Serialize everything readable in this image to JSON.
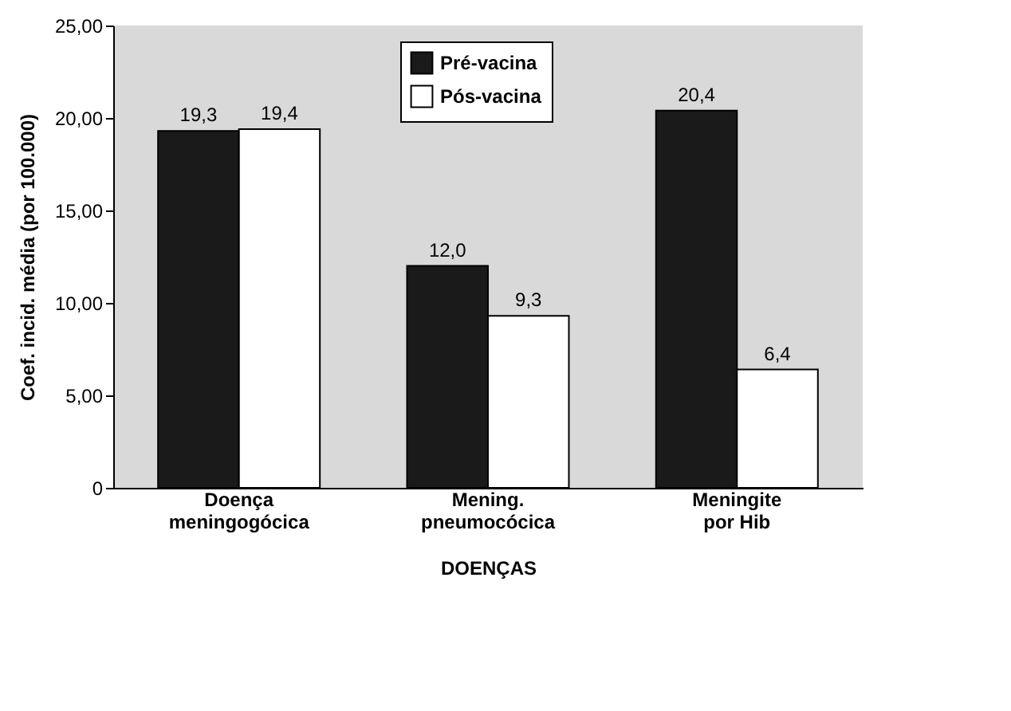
{
  "chart_data": {
    "type": "bar",
    "xlabel": "DOENÇAS",
    "ylabel": "Coef. incid. média (por 100.000)",
    "categories": [
      "Doença meningogócica",
      "Mening. pneumocócica",
      "Meningite por Hib"
    ],
    "series": [
      {
        "name": "Pré-vacina",
        "color": "#1a1a1a",
        "values": [
          19.3,
          12.0,
          20.4
        ],
        "value_labels": [
          "19,3",
          "12,0",
          "20,4"
        ]
      },
      {
        "name": "Pós-vacina",
        "color": "#ffffff",
        "values": [
          19.4,
          9.3,
          6.4
        ],
        "value_labels": [
          "19,4",
          "9,3",
          "6,4"
        ]
      }
    ],
    "ylim": [
      0,
      25
    ],
    "yticks": [
      0,
      {
        "value": 5,
        "label": "5,00"
      },
      {
        "value": 10,
        "label": "10,00"
      },
      {
        "value": 15,
        "label": "15,00"
      },
      {
        "value": 20,
        "label": "20,00"
      },
      {
        "value": 25,
        "label": "25,00"
      }
    ],
    "legend": "top",
    "grid": false
  }
}
